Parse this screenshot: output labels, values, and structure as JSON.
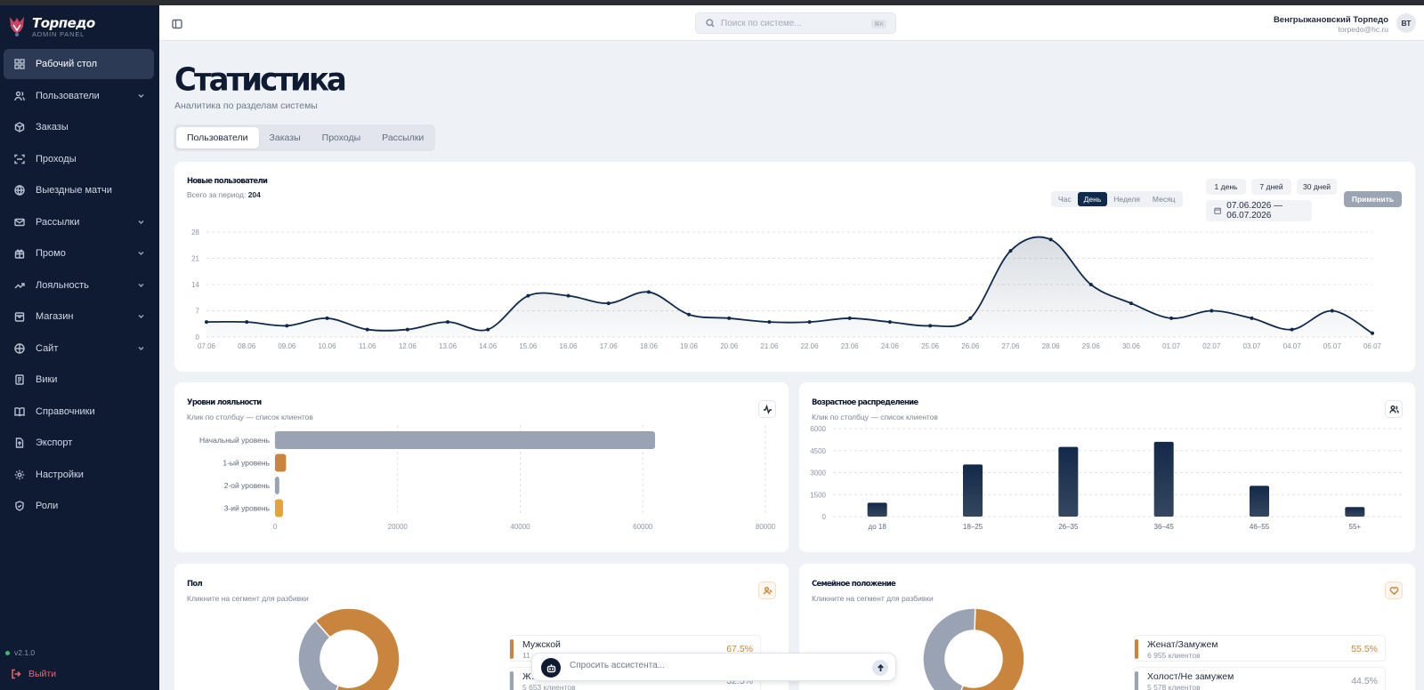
{
  "app": {
    "logo_title": "Торпедо",
    "logo_subtitle": "ADMIN PANEL",
    "version": "v2.1.0",
    "logout_label": "Выйти"
  },
  "sidebar": {
    "items": [
      {
        "label": "Рабочий стол",
        "icon": "dashboard-icon",
        "expandable": false,
        "active": true
      },
      {
        "label": "Пользователи",
        "icon": "users-icon",
        "expandable": true
      },
      {
        "label": "Заказы",
        "icon": "box-icon",
        "expandable": false
      },
      {
        "label": "Проходы",
        "icon": "scan-icon",
        "expandable": false
      },
      {
        "label": "Выездные матчи",
        "icon": "globe-icon",
        "expandable": false
      },
      {
        "label": "Рассылки",
        "icon": "mail-icon",
        "expandable": true
      },
      {
        "label": "Промо",
        "icon": "gift-icon",
        "expandable": true
      },
      {
        "label": "Лояльность",
        "icon": "trend-icon",
        "expandable": true
      },
      {
        "label": "Магазин",
        "icon": "store-icon",
        "expandable": true
      },
      {
        "label": "Сайт",
        "icon": "web-icon",
        "expandable": true
      },
      {
        "label": "Вики",
        "icon": "wiki-icon",
        "expandable": false
      },
      {
        "label": "Справочники",
        "icon": "book-icon",
        "expandable": false
      },
      {
        "label": "Экспорт",
        "icon": "export-icon",
        "expandable": false
      },
      {
        "label": "Настройки",
        "icon": "gear-icon",
        "expandable": false
      },
      {
        "label": "Роли",
        "icon": "shield-icon",
        "expandable": false
      }
    ]
  },
  "header": {
    "search_placeholder": "Поиск по системе...",
    "search_shortcut": "⌘K",
    "user_name": "Венгрыжановский Торпедо",
    "user_email": "torpedo@hc.ru",
    "avatar_initials": "ВТ"
  },
  "page": {
    "title": "Статистика",
    "subtitle": "Аналитика по разделам системы",
    "tabs": [
      "Пользователи",
      "Заказы",
      "Проходы",
      "Рассылки"
    ],
    "active_tab": 0
  },
  "new_users": {
    "title": "Новые пользователи",
    "total_label": "Всего за период:",
    "total_value": "204",
    "periods": [
      "Час",
      "День",
      "Неделя",
      "Месяц"
    ],
    "active_period": 1,
    "quick_ranges": [
      "1 день",
      "7 дней",
      "30 дней"
    ],
    "date_range": "07.06.2026 — 06.07.2026",
    "apply_label": "Применить"
  },
  "loyalty": {
    "title": "Уровни лояльности",
    "subtitle": "Клик по столбцу — список клиентов"
  },
  "age": {
    "title": "Возрастное распределение",
    "subtitle": "Клик по столбцу — список клиентов"
  },
  "gender": {
    "title": "Пол",
    "subtitle": "Кликните на сегмент для разбивки",
    "legend": [
      {
        "label": "Мужской",
        "count": "11 …",
        "pct": "67.5%"
      },
      {
        "label": "Ж…",
        "count": "5 653 клиентов",
        "pct": "32.5%"
      }
    ]
  },
  "family": {
    "title": "Семейное положение",
    "subtitle": "Кликните на сегмент для разбивки",
    "legend": [
      {
        "label": "Женат/Замужем",
        "count": "6 955 клиентов",
        "pct": "55.5%"
      },
      {
        "label": "Холост/Не замужем",
        "count": "5 578 клиентов",
        "pct": "44.5%"
      }
    ]
  },
  "assistant": {
    "placeholder": "Спросить ассистента..."
  },
  "colors": {
    "navy": "#0f2a4a",
    "sidebar": "#0f1a33",
    "orange": "#c9843d",
    "gray": "#99a3b3",
    "amber": "#e4a337"
  },
  "chart_data": [
    {
      "type": "line",
      "title": "Новые пользователи",
      "x": [
        "07.06",
        "08.06",
        "09.06",
        "10.06",
        "11.06",
        "12.06",
        "13.06",
        "14.06",
        "15.06",
        "16.06",
        "17.06",
        "18.06",
        "19.06",
        "20.06",
        "21.06",
        "22.06",
        "23.06",
        "24.06",
        "25.06",
        "26.06",
        "27.06",
        "28.06",
        "29.06",
        "30.06",
        "01.07",
        "02.07",
        "03.07",
        "04.07",
        "05.07",
        "06.07"
      ],
      "series": [
        {
          "values": [
            4,
            4,
            3,
            5,
            2,
            2,
            4,
            2,
            11,
            11,
            9,
            12,
            6,
            5,
            4,
            4,
            5,
            4,
            3,
            5,
            23,
            26,
            14,
            9,
            5,
            7,
            5,
            2,
            7,
            1
          ]
        }
      ],
      "yticks": [
        0,
        7,
        14,
        21,
        28
      ],
      "ylim": [
        0,
        28
      ],
      "grid": true
    },
    {
      "type": "bar",
      "orientation": "horizontal",
      "title": "Уровни лояльности",
      "categories": [
        "Начальный уровень",
        "1-ый уровень",
        "2-ой уровень",
        "3-ий уровень"
      ],
      "values": [
        62000,
        1800,
        700,
        1300
      ],
      "colors": [
        "#99a3b3",
        "#c9843d",
        "#99a3b3",
        "#e4a337"
      ],
      "xticks": [
        0,
        20000,
        40000,
        60000,
        80000
      ],
      "xlim": [
        0,
        80000
      ],
      "grid": true
    },
    {
      "type": "bar",
      "title": "Возрастное распределение",
      "categories": [
        "до 18",
        "18–25",
        "26–35",
        "36–45",
        "46–55",
        "55+"
      ],
      "values": [
        950,
        3550,
        4750,
        5100,
        2100,
        650
      ],
      "yticks": [
        0,
        1500,
        3000,
        4500,
        6000
      ],
      "ylim": [
        0,
        6000
      ],
      "grid": true
    },
    {
      "type": "pie",
      "title": "Пол",
      "categories": [
        "Мужской",
        "Ж…"
      ],
      "values": [
        67.5,
        32.5
      ],
      "colors": [
        "#c9843d",
        "#99a3b3"
      ]
    },
    {
      "type": "pie",
      "title": "Семейное положение",
      "categories": [
        "Женат/Замужем",
        "Холост/Не замужем"
      ],
      "values": [
        55.5,
        44.5
      ],
      "colors": [
        "#c9843d",
        "#99a3b3"
      ]
    }
  ]
}
